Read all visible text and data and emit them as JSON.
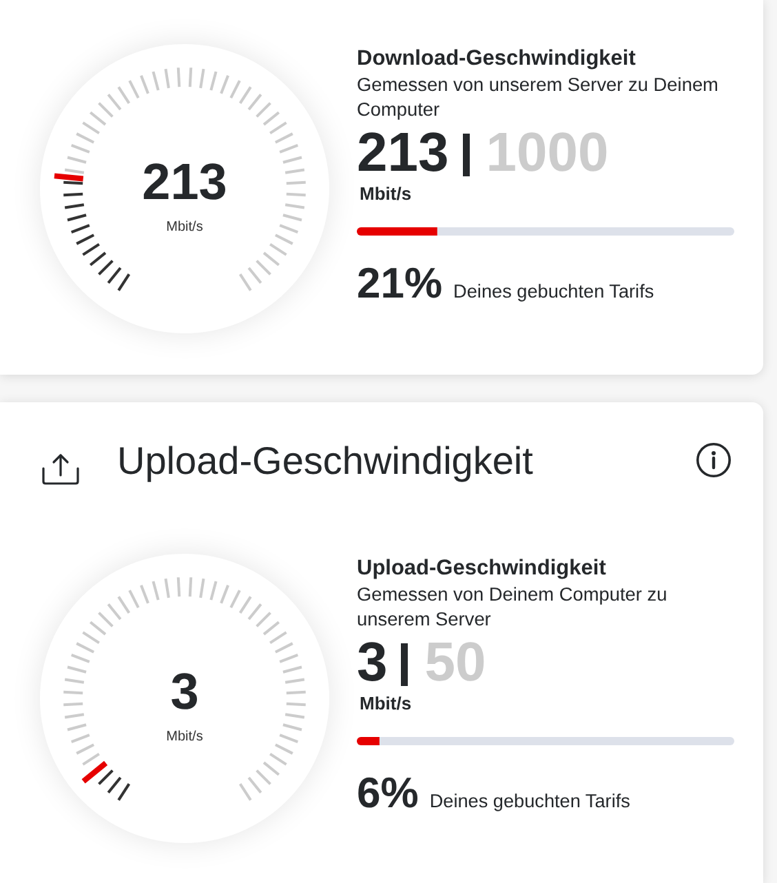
{
  "chart_data": [
    {
      "type": "other",
      "title": "Download-Geschwindigkeit",
      "subtitle": "Gemessen von unserem Server zu Deinem Computer",
      "ylabel": "Mbit/s",
      "values": [
        213,
        1000
      ],
      "colors": [
        "#e60000",
        "#dde1ea"
      ],
      "data_labels": true,
      "annotations": [
        "213",
        "21%",
        "Deines gebuchten Tarifs"
      ]
    },
    {
      "type": "other",
      "title": "Upload-Geschwindigkeit"
    },
    {
      "type": "other",
      "title": "Upload-Geschwindigkeit",
      "subtitle": "Gemessen von Deinem Computer zu unserem Server",
      "ylabel": "Mbit/s",
      "values": [
        3,
        50
      ],
      "colors": [
        "#e60000",
        "#dde1ea"
      ],
      "data_labels": true,
      "annotations": [
        "3",
        "6%",
        "Deines gebuchten Tarifs"
      ]
    }
  ]
}
